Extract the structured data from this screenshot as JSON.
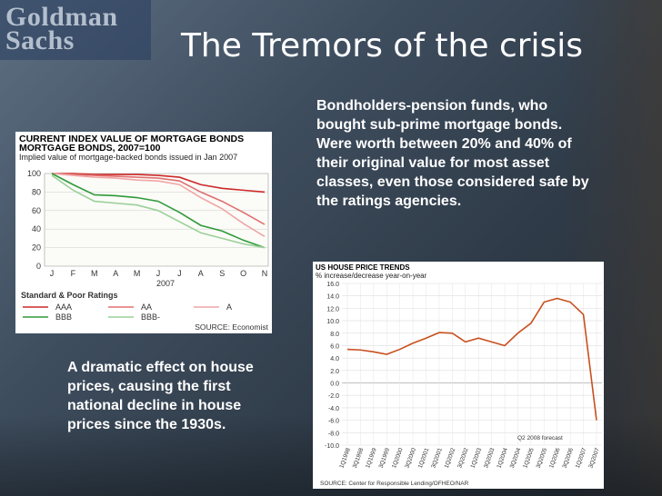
{
  "logo": {
    "line1": "Goldman",
    "line2": "Sachs"
  },
  "title": "The Tremors of the crisis",
  "paragraph_top": [
    "Bondholders-pension funds, who bought sub-prime mortgage bonds.",
    "Were worth between 20% and 40% of their original value for most asset classes, even those considered safe by the ratings agencies."
  ],
  "paragraph_bottom": "A dramatic effect on house prices, causing the first national decline in house prices since the 1930s.",
  "chart_data": [
    {
      "type": "line",
      "title": "CURRENT INDEX VALUE OF MORTGAGE BONDS, 2007=100",
      "subtitle": "Implied value of mortgage-backed bonds issued in Jan 2007",
      "categories": [
        "J",
        "F",
        "M",
        "A",
        "M",
        "J",
        "J",
        "A",
        "S",
        "O",
        "N"
      ],
      "xlabel": "2007",
      "ylim": [
        0,
        100
      ],
      "yticks": [
        0,
        20,
        40,
        60,
        80,
        100
      ],
      "legend_title": "Standard & Poor Ratings",
      "source": "SOURCE: Economist",
      "colors": {
        "AAA": "#cc2a2a",
        "AA": "#e07070",
        "A": "#f0a6a6",
        "BBB": "#2f9a3a",
        "BBB-": "#9ad09a"
      },
      "series": [
        {
          "name": "AAA",
          "values": [
            100,
            100,
            99,
            99,
            99,
            98,
            96,
            88,
            84,
            82,
            80
          ]
        },
        {
          "name": "AA",
          "values": [
            100,
            99,
            98,
            97,
            96,
            95,
            92,
            80,
            70,
            58,
            45
          ]
        },
        {
          "name": "A",
          "values": [
            100,
            98,
            96,
            95,
            93,
            92,
            88,
            74,
            62,
            46,
            32
          ]
        },
        {
          "name": "BBB",
          "values": [
            100,
            88,
            77,
            76,
            74,
            70,
            58,
            44,
            38,
            28,
            20
          ]
        },
        {
          "name": "BBB-",
          "values": [
            98,
            82,
            70,
            68,
            66,
            60,
            48,
            36,
            30,
            24,
            20
          ]
        }
      ]
    },
    {
      "type": "line",
      "title": "US HOUSE PRICE TRENDS",
      "subtitle": "% increase/decrease year-on-year",
      "ylim": [
        -10,
        16
      ],
      "yticks": [
        "16.0",
        "14.0",
        "12.0",
        "10.0",
        "8.0",
        "6.0",
        "4.0",
        "2.0",
        "0.0",
        "-2.0",
        "-4.0",
        "-6.0",
        "-8.0",
        "-10.0"
      ],
      "annotation": "Q2 2008 forecast",
      "source": "SOURCE: Center for Responsible Lending/OFHEO/NAR",
      "color": "#c8501e",
      "categories": [
        "1Q1998",
        "3Q1998",
        "1Q1999",
        "3Q1999",
        "1Q2000",
        "3Q2000",
        "1Q2001",
        "3Q2001",
        "1Q2002",
        "3Q2002",
        "1Q2003",
        "3Q2003",
        "1Q2004",
        "3Q2004",
        "1Q2005",
        "3Q2005",
        "1Q2006",
        "3Q2006",
        "1Q2007",
        "3Q2007"
      ],
      "series": [
        {
          "values": [
            5.4,
            5.3,
            5.0,
            4.6,
            5.4,
            6.4,
            7.2,
            8.1,
            8.0,
            6.6,
            7.2,
            6.6,
            6.0,
            8.0,
            9.6,
            13.0,
            13.6,
            13.0,
            11.0,
            -6.0
          ]
        }
      ],
      "x_values": [
        0,
        1,
        2,
        3,
        4,
        5,
        6,
        7,
        8,
        9,
        10,
        11,
        12,
        13,
        14,
        15,
        16,
        17,
        18,
        19
      ]
    }
  ]
}
